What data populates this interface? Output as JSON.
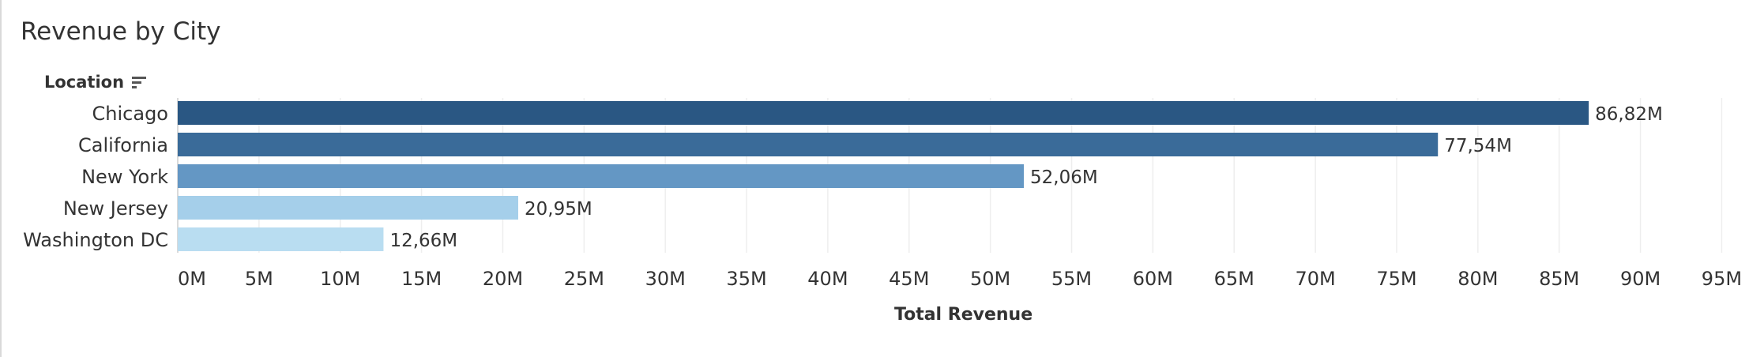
{
  "chart_data": {
    "type": "bar",
    "orientation": "horizontal",
    "title": "Revenue by City",
    "y_header": "Location",
    "xlabel": "Total Revenue",
    "categories": [
      "Chicago",
      "California",
      "New York",
      "New Jersey",
      "Washington DC"
    ],
    "values": [
      86.82,
      77.54,
      52.06,
      20.95,
      12.66
    ],
    "value_labels": [
      "86,82M",
      "77,54M",
      "52,06M",
      "20,95M",
      "12,66M"
    ],
    "colors": [
      "#2a5783",
      "#3a6b99",
      "#6497c4",
      "#a5cfea",
      "#b9ddf1"
    ],
    "xlim": [
      0,
      96
    ],
    "x_ticks": [
      0,
      5,
      10,
      15,
      20,
      25,
      30,
      35,
      40,
      45,
      50,
      55,
      60,
      65,
      70,
      75,
      80,
      85,
      90,
      95
    ],
    "x_tick_labels": [
      "0M",
      "5M",
      "10M",
      "15M",
      "20M",
      "25M",
      "30M",
      "35M",
      "40M",
      "45M",
      "50M",
      "55M",
      "60M",
      "65M",
      "70M",
      "75M",
      "80M",
      "85M",
      "90M",
      "95M"
    ],
    "grid": true
  }
}
